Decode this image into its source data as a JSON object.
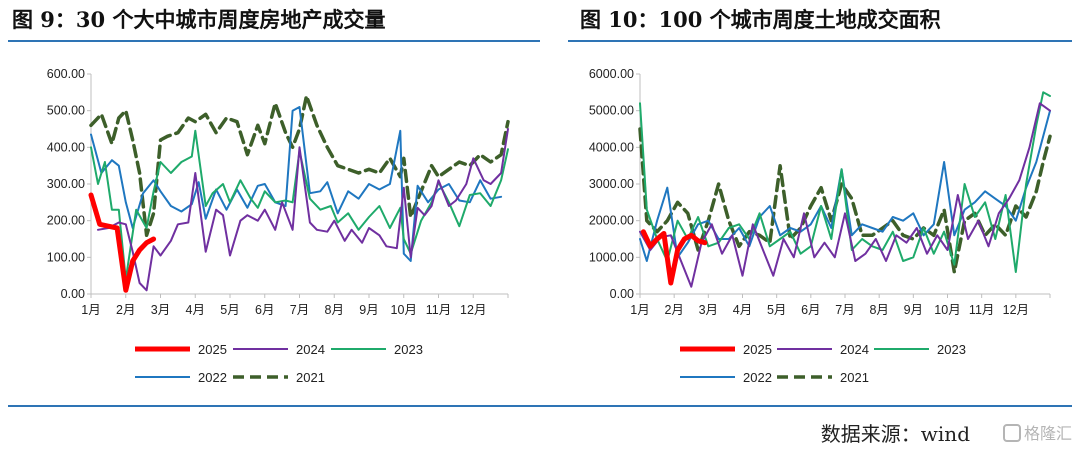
{
  "panels": {
    "left_title": "图 9：30 个大中城市周度房地产成交量",
    "right_title": "图 10：100 个城市周度土地成交面积"
  },
  "source": "数据来源：wind",
  "watermark": "格隆汇",
  "colors": {
    "2025": "#ff0000",
    "2024": "#7030a0",
    "2023": "#1faa6b",
    "2022": "#1f77c0",
    "2021": "#3d5f2a",
    "axis": "#bfbfbf"
  },
  "chart_data": [
    {
      "type": "line",
      "title": "图 9：30 个大中城市周度房地产成交量",
      "x_ticks": [
        "1月",
        "2月",
        "3月",
        "4月",
        "5月",
        "6月",
        "7月",
        "8月",
        "9月",
        "10月",
        "11月",
        "12月"
      ],
      "y_ticks": [
        "0.00",
        "100.00",
        "200.00",
        "300.00",
        "400.00",
        "500.00",
        "600.00"
      ],
      "ylim": [
        0,
        600
      ],
      "xlim": [
        1,
        13
      ],
      "grid": false,
      "legend": [
        "2025",
        "2024",
        "2023",
        "2022",
        "2021"
      ],
      "series": [
        {
          "name": "2025",
          "x": [
            1,
            1.25,
            1.5,
            1.75,
            2,
            2.2,
            2.4,
            2.6,
            2.8
          ],
          "y": [
            270,
            190,
            185,
            180,
            10,
            90,
            120,
            140,
            150
          ]
        },
        {
          "name": "2024",
          "x": [
            1.2,
            1.5,
            1.8,
            2,
            2.2,
            2.4,
            2.6,
            2.8,
            3,
            3.3,
            3.5,
            3.8,
            4,
            4.3,
            4.6,
            4.8,
            5,
            5.3,
            5.5,
            5.8,
            6,
            6.3,
            6.5,
            6.8,
            7,
            7.3,
            7.5,
            7.8,
            8,
            8.3,
            8.5,
            8.8,
            9,
            9.3,
            9.5,
            9.8,
            10,
            10.2,
            10.4,
            10.6,
            10.8,
            11,
            11.3,
            11.5,
            11.8,
            12,
            12.3,
            12.5,
            12.8,
            13
          ],
          "y": [
            175,
            180,
            195,
            190,
            115,
            30,
            10,
            130,
            105,
            145,
            190,
            195,
            330,
            115,
            230,
            215,
            105,
            200,
            215,
            200,
            230,
            175,
            250,
            175,
            400,
            195,
            175,
            170,
            200,
            145,
            175,
            140,
            180,
            160,
            130,
            125,
            290,
            100,
            235,
            215,
            240,
            310,
            240,
            255,
            300,
            370,
            310,
            300,
            330,
            450
          ]
        },
        {
          "name": "2023",
          "x": [
            1,
            1.2,
            1.4,
            1.6,
            1.8,
            2,
            2.3,
            2.6,
            2.8,
            3,
            3.3,
            3.6,
            3.9,
            4,
            4.3,
            4.5,
            4.8,
            5,
            5.3,
            5.6,
            5.8,
            6,
            6.3,
            6.6,
            6.8,
            7,
            7.3,
            7.6,
            7.9,
            8.1,
            8.4,
            8.7,
            9,
            9.3,
            9.6,
            9.9,
            10,
            10.2,
            10.5,
            10.8,
            11,
            11.3,
            11.6,
            11.9,
            12.2,
            12.5,
            12.8,
            13
          ],
          "y": [
            400,
            300,
            360,
            230,
            230,
            40,
            230,
            180,
            280,
            360,
            330,
            360,
            375,
            445,
            240,
            275,
            300,
            250,
            310,
            260,
            235,
            280,
            250,
            255,
            250,
            390,
            260,
            230,
            240,
            195,
            220,
            175,
            210,
            240,
            180,
            235,
            150,
            110,
            200,
            250,
            305,
            250,
            185,
            270,
            275,
            240,
            310,
            395
          ]
        },
        {
          "name": "2022",
          "x": [
            1,
            1.3,
            1.6,
            1.8,
            2,
            2.2,
            2.5,
            2.8,
            3,
            3.3,
            3.6,
            3.9,
            4.1,
            4.3,
            4.6,
            4.9,
            5.2,
            5.5,
            5.8,
            6,
            6.3,
            6.6,
            6.8,
            7,
            7.3,
            7.6,
            7.8,
            8.1,
            8.4,
            8.7,
            9,
            9.3,
            9.6,
            9.9,
            10,
            10.2,
            10.4,
            10.7,
            11,
            11.3,
            11.6,
            11.9,
            12.2,
            12.5,
            12.8
          ],
          "y": [
            435,
            330,
            365,
            350,
            250,
            180,
            275,
            310,
            280,
            240,
            225,
            245,
            305,
            205,
            285,
            230,
            285,
            235,
            295,
            300,
            250,
            240,
            500,
            510,
            275,
            280,
            305,
            220,
            280,
            260,
            300,
            285,
            300,
            445,
            110,
            90,
            295,
            250,
            285,
            300,
            255,
            250,
            310,
            260,
            265
          ]
        },
        {
          "name": "2021",
          "x": [
            1,
            1.3,
            1.6,
            1.8,
            2,
            2.2,
            2.4,
            2.6,
            2.8,
            3,
            3.2,
            3.5,
            3.8,
            4,
            4.3,
            4.6,
            4.9,
            5.2,
            5.5,
            5.8,
            6,
            6.3,
            6.6,
            6.8,
            7,
            7.2,
            7.5,
            7.8,
            8.1,
            8.4,
            8.7,
            9,
            9.3,
            9.6,
            9.9,
            10,
            10.2,
            10.5,
            10.8,
            11,
            11.3,
            11.6,
            11.9,
            12.2,
            12.5,
            12.8,
            13
          ],
          "y": [
            460,
            490,
            410,
            480,
            500,
            420,
            330,
            160,
            220,
            420,
            430,
            440,
            480,
            470,
            490,
            440,
            480,
            470,
            380,
            460,
            410,
            520,
            440,
            400,
            450,
            540,
            460,
            400,
            350,
            340,
            330,
            340,
            330,
            370,
            320,
            370,
            210,
            280,
            350,
            320,
            340,
            360,
            350,
            380,
            360,
            380,
            470
          ]
        }
      ]
    },
    {
      "type": "line",
      "title": "图 10：100 个城市周度土地成交面积",
      "x_ticks": [
        "1月",
        "2月",
        "3月",
        "4月",
        "5月",
        "6月",
        "7月",
        "8月",
        "9月",
        "10月",
        "11月",
        "12月"
      ],
      "y_ticks": [
        "0.00",
        "1000.00",
        "2000.00",
        "3000.00",
        "4000.00",
        "5000.00",
        "6000.00"
      ],
      "ylim": [
        0,
        6000
      ],
      "xlim": [
        1,
        13
      ],
      "grid": false,
      "legend": [
        "2025",
        "2024",
        "2023",
        "2022",
        "2021"
      ],
      "series": [
        {
          "name": "2025",
          "x": [
            1.1,
            1.3,
            1.5,
            1.7,
            1.9,
            2.1,
            2.3,
            2.5,
            2.7,
            2.9
          ],
          "y": [
            1700,
            1300,
            1500,
            1650,
            300,
            1200,
            1500,
            1600,
            1450,
            1400
          ]
        },
        {
          "name": "2024",
          "x": [
            1,
            1.3,
            1.6,
            1.9,
            2.2,
            2.5,
            2.8,
            3.1,
            3.4,
            3.7,
            4,
            4.3,
            4.6,
            4.9,
            5.2,
            5.5,
            5.8,
            6.1,
            6.4,
            6.7,
            7,
            7.3,
            7.6,
            7.9,
            8.2,
            8.5,
            8.8,
            9.1,
            9.4,
            9.7,
            10,
            10.3,
            10.6,
            10.9,
            11.2,
            11.5,
            11.8,
            12.1,
            12.4,
            12.7,
            13
          ],
          "y": [
            1700,
            1200,
            1550,
            1600,
            900,
            200,
            1400,
            1900,
            1100,
            1600,
            500,
            1900,
            1200,
            500,
            1500,
            1000,
            2200,
            1000,
            1400,
            1000,
            2200,
            900,
            1100,
            1500,
            900,
            1600,
            1400,
            1800,
            1100,
            1600,
            1200,
            2700,
            1500,
            2000,
            1300,
            2200,
            2600,
            3100,
            4000,
            5200,
            5000
          ]
        },
        {
          "name": "2023",
          "x": [
            1,
            1.2,
            1.5,
            1.8,
            2.1,
            2.4,
            2.7,
            3,
            3.3,
            3.6,
            3.9,
            4.2,
            4.5,
            4.8,
            5.1,
            5.4,
            5.7,
            6,
            6.3,
            6.6,
            6.9,
            7.2,
            7.5,
            7.8,
            8.1,
            8.4,
            8.7,
            9,
            9.3,
            9.6,
            9.9,
            10.2,
            10.5,
            10.8,
            11.1,
            11.4,
            11.7,
            12,
            12.3,
            12.6,
            12.8,
            13
          ],
          "y": [
            5200,
            2300,
            1500,
            900,
            2000,
            1500,
            2100,
            1300,
            1400,
            1800,
            1900,
            1500,
            2200,
            1300,
            1500,
            1700,
            1100,
            1300,
            2400,
            1500,
            3400,
            1200,
            1500,
            1300,
            1200,
            1700,
            900,
            1000,
            1800,
            1100,
            1700,
            800,
            3000,
            2100,
            2500,
            1500,
            2700,
            600,
            3000,
            4600,
            5500,
            5400
          ]
        },
        {
          "name": "2022",
          "x": [
            1,
            1.2,
            1.5,
            1.8,
            2.1,
            2.4,
            2.7,
            3,
            3.3,
            3.6,
            3.9,
            4.2,
            4.5,
            4.8,
            5.1,
            5.4,
            5.7,
            6,
            6.3,
            6.6,
            6.9,
            7.2,
            7.5,
            7.8,
            8.1,
            8.4,
            8.7,
            9,
            9.3,
            9.6,
            9.9,
            10.2,
            10.5,
            10.8,
            11.1,
            11.4,
            11.7,
            12,
            12.3,
            12.6,
            12.8,
            13
          ],
          "y": [
            1500,
            900,
            2000,
            2900,
            1000,
            1400,
            1900,
            2000,
            1500,
            1500,
            1800,
            1300,
            2100,
            2400,
            1600,
            1800,
            1700,
            1900,
            2400,
            1800,
            3400,
            1600,
            1900,
            1800,
            1700,
            2100,
            2000,
            2200,
            1600,
            1900,
            3600,
            1600,
            2300,
            2500,
            2800,
            2600,
            2400,
            2000,
            2900,
            3600,
            4300,
            5000
          ]
        },
        {
          "name": "2021",
          "x": [
            1,
            1.2,
            1.5,
            1.8,
            2.1,
            2.4,
            2.7,
            3,
            3.3,
            3.6,
            3.9,
            4.2,
            4.5,
            4.8,
            5.1,
            5.4,
            5.7,
            6,
            6.3,
            6.6,
            6.9,
            7.2,
            7.5,
            7.8,
            8.1,
            8.4,
            8.7,
            9,
            9.3,
            9.6,
            9.9,
            10.2,
            10.5,
            10.8,
            11.1,
            11.4,
            11.7,
            12,
            12.3,
            12.6,
            12.8,
            13
          ],
          "y": [
            4500,
            2000,
            1700,
            2000,
            2500,
            2200,
            1200,
            2000,
            3000,
            2000,
            1300,
            1700,
            1600,
            1400,
            3500,
            1500,
            1800,
            2400,
            2900,
            2000,
            3000,
            2600,
            1600,
            1600,
            1800,
            2000,
            1600,
            1500,
            1800,
            1600,
            2300,
            600,
            2000,
            2200,
            1600,
            1900,
            1600,
            2400,
            2100,
            2800,
            3600,
            4300
          ]
        }
      ]
    }
  ]
}
